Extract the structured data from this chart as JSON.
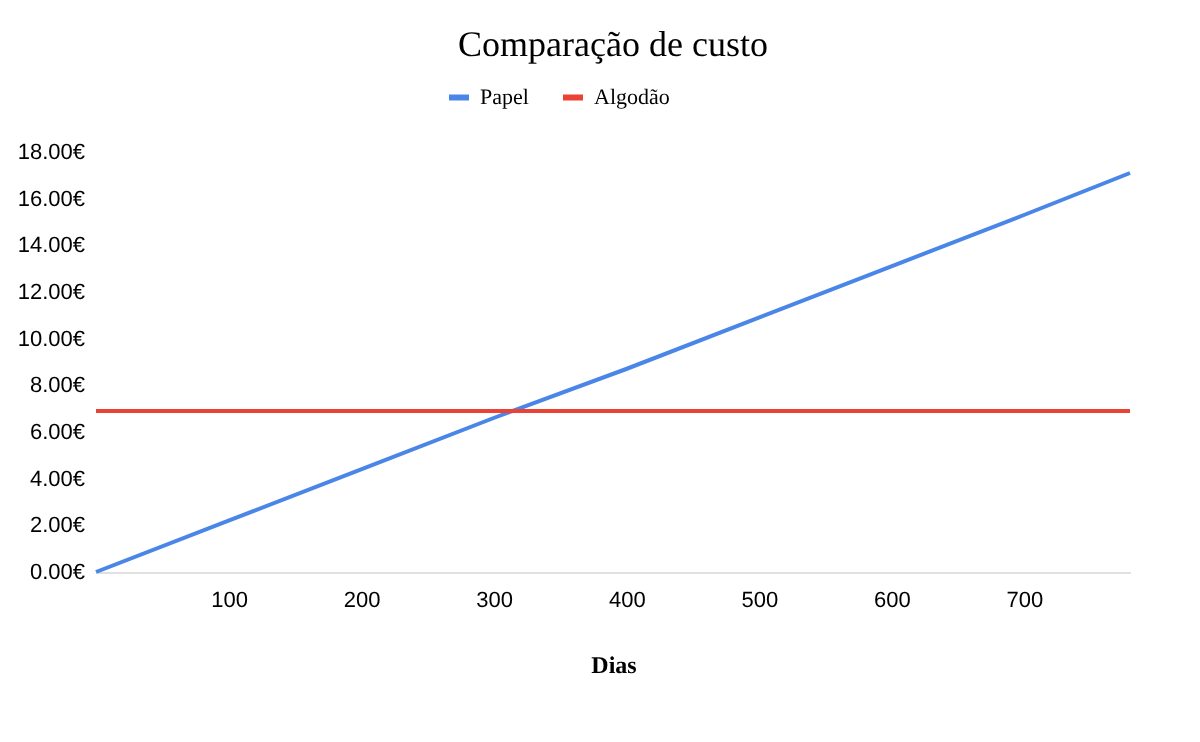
{
  "chart_data": {
    "type": "line",
    "title": "Comparação de custo",
    "xlabel": "Dias",
    "series": [
      {
        "name": "Papel",
        "color": "#4a86e8",
        "x": [
          0,
          100,
          200,
          300,
          400,
          500,
          600,
          700,
          780
        ],
        "values": [
          0,
          2.2,
          4.4,
          6.6,
          8.7,
          10.9,
          13.1,
          15.3,
          17.1
        ]
      },
      {
        "name": "Algodão",
        "color": "#ea4335",
        "x": [
          0,
          100,
          200,
          300,
          400,
          500,
          600,
          700,
          780
        ],
        "values": [
          6.9,
          6.9,
          6.9,
          6.9,
          6.9,
          6.9,
          6.9,
          6.9,
          6.9
        ]
      }
    ],
    "xlim": [
      0,
      780
    ],
    "xticks": [
      100,
      200,
      300,
      400,
      500,
      600,
      700
    ],
    "ylim": [
      0,
      18
    ],
    "yticks": [
      {
        "value": 0,
        "label": "0.00€"
      },
      {
        "value": 2,
        "label": "2.00€"
      },
      {
        "value": 4,
        "label": "4.00€"
      },
      {
        "value": 6,
        "label": "6.00€"
      },
      {
        "value": 8,
        "label": "8.00€"
      },
      {
        "value": 10,
        "label": "10.00€"
      },
      {
        "value": 12,
        "label": "12.00€"
      },
      {
        "value": 14,
        "label": "14.00€"
      },
      {
        "value": 16,
        "label": "16.00€"
      },
      {
        "value": 18,
        "label": "18.00€"
      }
    ],
    "grid": false,
    "legend": "top",
    "marker": "none",
    "line_style": "solid"
  }
}
